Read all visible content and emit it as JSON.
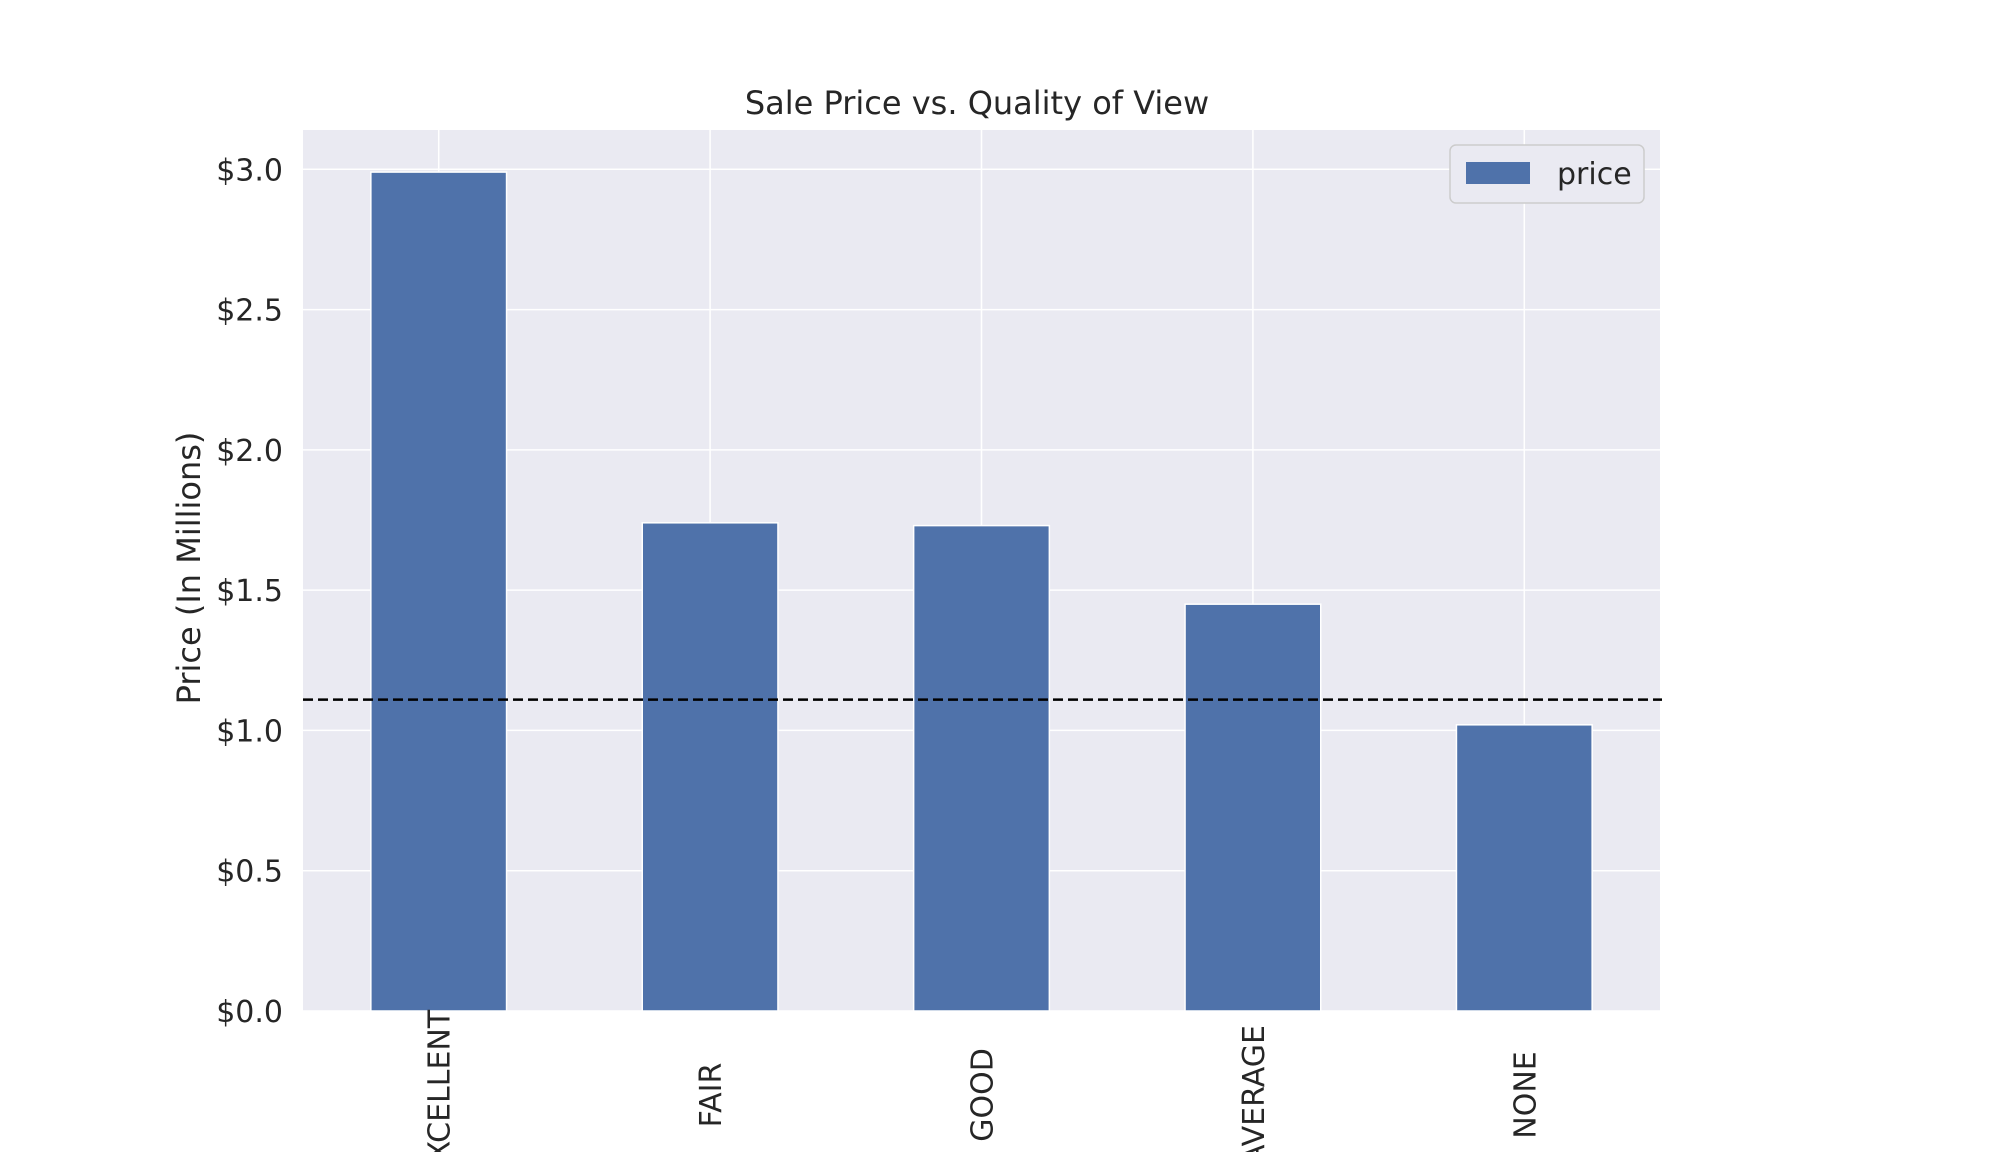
{
  "chart_data": {
    "type": "bar",
    "title": "Sale Price vs. Quality of View",
    "xlabel": "",
    "ylabel": "Price (In Millions)",
    "categories": [
      "EXCELLENT",
      "FAIR",
      "GOOD",
      "AVERAGE",
      "NONE"
    ],
    "series": [
      {
        "name": "price",
        "values": [
          2.99,
          1.74,
          1.73,
          1.45,
          1.02
        ],
        "color": "#4f72aa"
      }
    ],
    "ylim": [
      0,
      3.14
    ],
    "yticks": [
      0.0,
      0.5,
      1.0,
      1.5,
      2.0,
      2.5,
      3.0
    ],
    "ytick_labels": [
      "$0.0",
      "$0.5",
      "$1.0",
      "$1.5",
      "$2.0",
      "$2.5",
      "$3.0"
    ],
    "reference_line": {
      "value": 1.11,
      "style": "dashed",
      "color": "#000000"
    },
    "grid": true,
    "legend": {
      "position": "top-right",
      "entries": [
        "price"
      ]
    },
    "background": "#eaeaf2",
    "grid_color": "#ffffff"
  }
}
